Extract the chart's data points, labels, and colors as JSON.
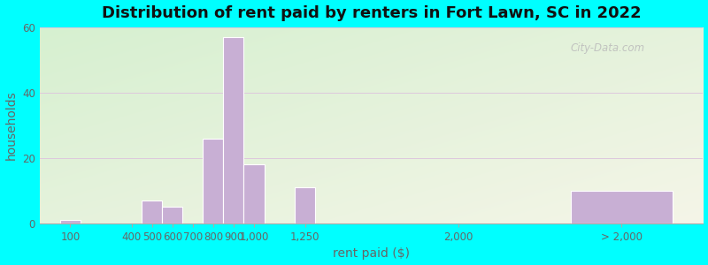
{
  "title": "Distribution of rent paid by renters in Fort Lawn, SC in 2022",
  "xlabel": "rent paid ($)",
  "ylabel": "households",
  "bar_color": "#c8afd4",
  "bar_edge_color": "#ffffff",
  "ylim": [
    0,
    60
  ],
  "yticks": [
    0,
    20,
    40,
    60
  ],
  "background_color": "#00ffff",
  "categories": [
    "100",
    "400",
    "500",
    "600",
    "700",
    "800",
    "900",
    "1,000",
    "1,250",
    "2,000",
    "> 2,000"
  ],
  "values": [
    1,
    0,
    7,
    5,
    0,
    26,
    57,
    18,
    11,
    0,
    10
  ],
  "title_fontsize": 13,
  "axis_label_fontsize": 10,
  "tick_fontsize": 8.5,
  "watermark": "City-Data.com"
}
